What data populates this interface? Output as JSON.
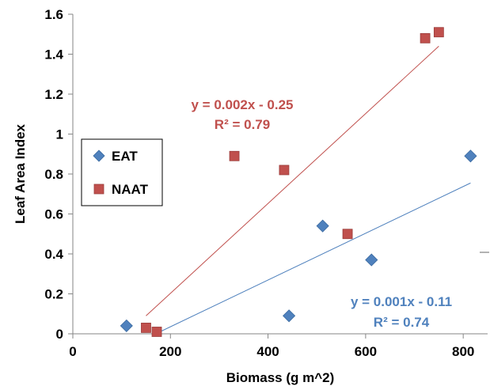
{
  "chart_data": {
    "type": "scatter",
    "xlabel": "Biomass (g m^2)",
    "ylabel": "Leaf Area Index",
    "xlim": [
      0,
      850
    ],
    "ylim": [
      0,
      1.6
    ],
    "xticks": [
      "0",
      "200",
      "400",
      "600",
      "800"
    ],
    "yticks": [
      "0",
      "0.2",
      "0.4",
      "0.6",
      "0.8",
      "1",
      "1.2",
      "1.4",
      "1.6"
    ],
    "grid": false,
    "legend_position": "left",
    "series": [
      {
        "name": "EAT",
        "color": "#4F81BD",
        "marker": "diamond",
        "points": [
          {
            "x": 110,
            "y": 0.04
          },
          {
            "x": 443,
            "y": 0.09
          },
          {
            "x": 512,
            "y": 0.54
          },
          {
            "x": 612,
            "y": 0.37
          },
          {
            "x": 815,
            "y": 0.89
          }
        ],
        "trendline": {
          "x_start": 170,
          "x_end": 815,
          "y_start": 0.0,
          "y_end": 0.755
        },
        "equation": "y = 0.001x - 0.11",
        "r2": "R² = 0.74"
      },
      {
        "name": "NAAT",
        "color": "#C0504D",
        "marker": "square",
        "points": [
          {
            "x": 150,
            "y": 0.03
          },
          {
            "x": 172,
            "y": 0.01
          },
          {
            "x": 331,
            "y": 0.89
          },
          {
            "x": 433,
            "y": 0.82
          },
          {
            "x": 563,
            "y": 0.5
          },
          {
            "x": 722,
            "y": 1.48
          },
          {
            "x": 750,
            "y": 1.51
          }
        ],
        "trendline": {
          "x_start": 150,
          "x_end": 750,
          "y_start": 0.09,
          "y_end": 1.44
        },
        "equation": "y = 0.002x - 0.25",
        "r2": "R² = 0.79"
      }
    ]
  }
}
